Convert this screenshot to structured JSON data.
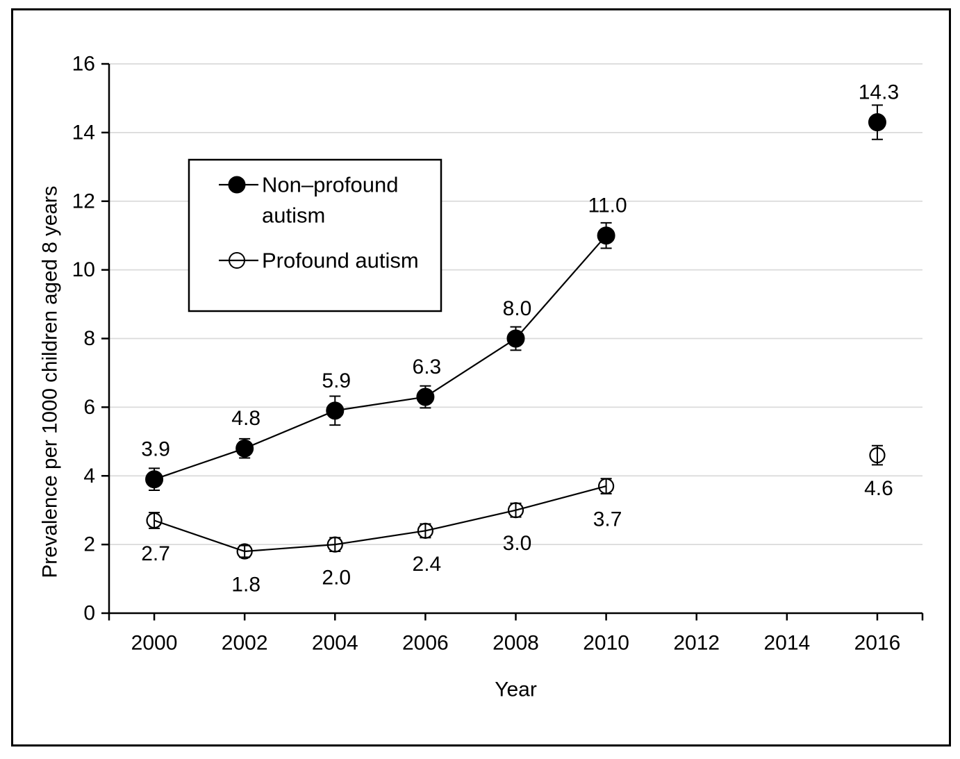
{
  "figure": {
    "background": "#ffffff",
    "border_color": "#000000"
  },
  "chart_data": {
    "type": "line",
    "title": "",
    "xlabel": "Year",
    "ylabel": "Prevalence per 1000 children aged 8 years",
    "xlim": [
      1999,
      2017
    ],
    "ylim": [
      0,
      16
    ],
    "x_ticks": [
      "2000",
      "2002",
      "2004",
      "2006",
      "2008",
      "2010",
      "2012",
      "2014",
      "2016"
    ],
    "x_tick_years": [
      2000,
      2002,
      2004,
      2006,
      2008,
      2010,
      2012,
      2014,
      2016
    ],
    "y_ticks": [
      "0",
      "2",
      "4",
      "6",
      "8",
      "10",
      "12",
      "14",
      "16"
    ],
    "y_tick_values": [
      0,
      2,
      4,
      6,
      8,
      10,
      12,
      14,
      16
    ],
    "grid": "horizontal",
    "gridline_color": "#dadada",
    "axis_color": "#000000",
    "legend": {
      "position": "upper-left-inside",
      "border": true,
      "fill": "#ffffff"
    },
    "series": [
      {
        "name": "Non–profound autism",
        "legend_lines": [
          "Non–profound",
          "autism"
        ],
        "marker": "filled-circle",
        "color": "#000000",
        "connected_through": 2010,
        "points": [
          {
            "year": 2000,
            "value": 3.9,
            "error": 0.32,
            "label": "3.9",
            "label_position": "above"
          },
          {
            "year": 2002,
            "value": 4.8,
            "error": 0.28,
            "label": "4.8",
            "label_position": "above"
          },
          {
            "year": 2004,
            "value": 5.9,
            "error": 0.42,
            "label": "5.9",
            "label_position": "above"
          },
          {
            "year": 2006,
            "value": 6.3,
            "error": 0.32,
            "label": "6.3",
            "label_position": "above"
          },
          {
            "year": 2008,
            "value": 8.0,
            "error": 0.34,
            "label": "8.0",
            "label_position": "above"
          },
          {
            "year": 2010,
            "value": 11.0,
            "error": 0.37,
            "label": "11.0",
            "label_position": "above"
          },
          {
            "year": 2016,
            "value": 14.3,
            "error": 0.5,
            "label": "14.3",
            "label_position": "above"
          }
        ]
      },
      {
        "name": "Profound autism",
        "legend_lines": [
          "Profound autism"
        ],
        "marker": "open-circle",
        "color": "#000000",
        "connected_through": 2010,
        "points": [
          {
            "year": 2000,
            "value": 2.7,
            "error": 0.23,
            "label": "2.7",
            "label_position": "below"
          },
          {
            "year": 2002,
            "value": 1.8,
            "error": 0.17,
            "label": "1.8",
            "label_position": "below"
          },
          {
            "year": 2004,
            "value": 2.0,
            "error": 0.2,
            "label": "2.0",
            "label_position": "below"
          },
          {
            "year": 2006,
            "value": 2.4,
            "error": 0.2,
            "label": "2.4",
            "label_position": "below"
          },
          {
            "year": 2008,
            "value": 3.0,
            "error": 0.2,
            "label": "3.0",
            "label_position": "below"
          },
          {
            "year": 2010,
            "value": 3.7,
            "error": 0.22,
            "label": "3.7",
            "label_position": "below"
          },
          {
            "year": 2016,
            "value": 4.6,
            "error": 0.28,
            "label": "4.6",
            "label_position": "below"
          }
        ]
      }
    ]
  }
}
